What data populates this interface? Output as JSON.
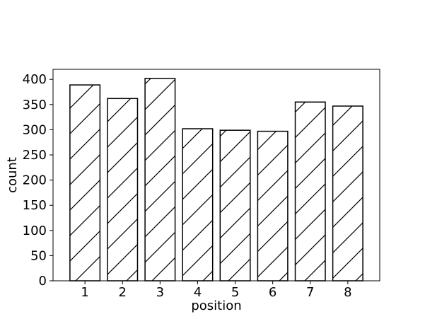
{
  "chart_data": {
    "type": "bar",
    "title": "",
    "xlabel": "position",
    "ylabel": "count",
    "categories": [
      "1",
      "2",
      "3",
      "4",
      "5",
      "6",
      "7",
      "8"
    ],
    "values": [
      389,
      362,
      402,
      302,
      299,
      297,
      355,
      347
    ],
    "ylim": [
      0,
      420
    ],
    "yticks": [
      0,
      50,
      100,
      150,
      200,
      250,
      300,
      350,
      400
    ],
    "grid": false,
    "legend": "none",
    "bar_fill": "#ffffff",
    "bar_edge": "#000000",
    "bar_hatch": "diagonal"
  }
}
